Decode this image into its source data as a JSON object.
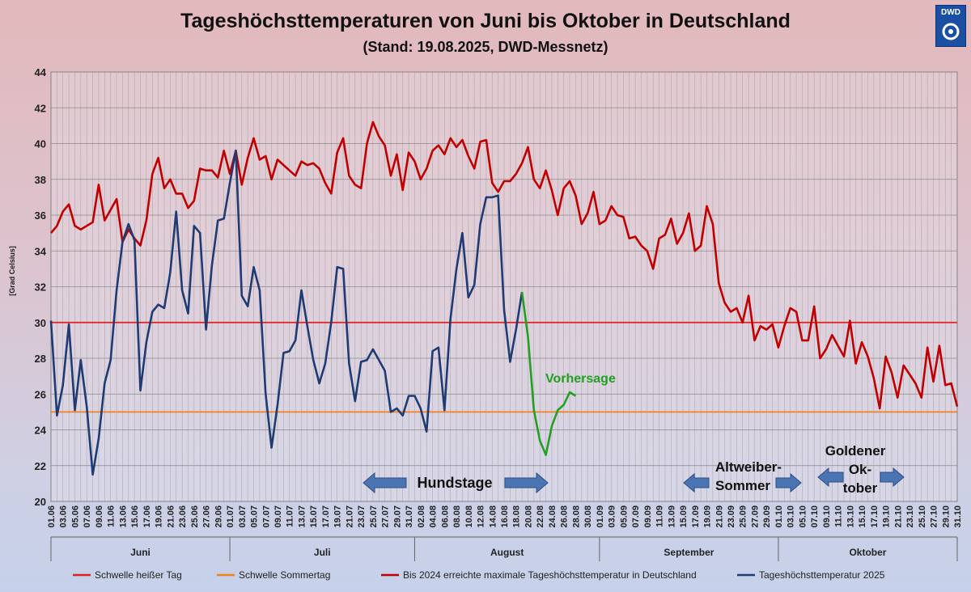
{
  "title": "Tageshöchsttemperaturen von Juni bis Oktober in Deutschland",
  "subtitle": "(Stand: 19.08.2025, DWD-Messnetz)",
  "logo_text": "DWD",
  "colors": {
    "hot_threshold": "#e02020",
    "summer_threshold": "#f08020",
    "record_max": "#c00000",
    "temp_2025": "#1f3b73",
    "forecast": "#22a022"
  },
  "annotations": {
    "forecast": "Vorhersage",
    "dog_days": "Hundstage",
    "indian_summer_1": "Altweiber-",
    "indian_summer_2": "Sommer",
    "golden_october_1": "Goldener",
    "golden_october_2": "Ok-",
    "golden_october_3": "tober"
  },
  "chart_data": {
    "type": "line",
    "ylabel": "[Grad Celsius]",
    "ylim": [
      20,
      44
    ],
    "yticks": [
      20,
      22,
      24,
      26,
      28,
      30,
      32,
      34,
      36,
      38,
      40,
      42,
      44
    ],
    "grid": true,
    "x_start": "01.06",
    "x_end": "31.10",
    "x_tick_labels": [
      "01.06",
      "03.06",
      "05.06",
      "07.06",
      "09.06",
      "11.06",
      "13.06",
      "15.06",
      "17.06",
      "19.06",
      "21.06",
      "23.06",
      "25.06",
      "27.06",
      "29.06",
      "01.07",
      "03.07",
      "05.07",
      "07.07",
      "09.07",
      "11.07",
      "13.07",
      "15.07",
      "17.07",
      "19.07",
      "21.07",
      "23.07",
      "25.07",
      "27.07",
      "29.07",
      "31.07",
      "02.08",
      "04.08",
      "06.08",
      "08.08",
      "10.08",
      "12.08",
      "14.08",
      "16.08",
      "18.08",
      "20.08",
      "22.08",
      "24.08",
      "26.08",
      "28.08",
      "30.08",
      "01.09",
      "03.09",
      "05.09",
      "07.09",
      "09.09",
      "11.09",
      "13.09",
      "15.09",
      "17.09",
      "19.09",
      "21.09",
      "23.09",
      "25.09",
      "27.09",
      "29.09",
      "01.10",
      "03.10",
      "05.10",
      "07.10",
      "09.10",
      "11.10",
      "13.10",
      "15.10",
      "17.10",
      "19.10",
      "21.10",
      "23.10",
      "25.10",
      "27.10",
      "29.10",
      "31.10"
    ],
    "months": [
      "Juni",
      "Juli",
      "August",
      "September",
      "Oktober"
    ],
    "month_days": [
      30,
      31,
      31,
      30,
      31
    ],
    "series": [
      {
        "name": "Schwelle heißer Tag",
        "kind": "threshold",
        "value": 30,
        "color": "#e02020"
      },
      {
        "name": "Schwelle Sommertag",
        "kind": "threshold",
        "value": 25,
        "color": "#f08020"
      },
      {
        "name": "Bis 2024 erreichte maximale Tageshöchsttemperatur in Deutschland",
        "color": "#c00000",
        "values": [
          35.0,
          35.4,
          36.2,
          36.6,
          35.4,
          35.2,
          35.4,
          35.6,
          37.7,
          35.7,
          36.3,
          36.9,
          34.5,
          35.2,
          34.7,
          34.3,
          35.7,
          38.3,
          39.2,
          37.5,
          38.0,
          37.2,
          37.2,
          36.4,
          36.8,
          38.6,
          38.5,
          38.5,
          38.1,
          39.6,
          38.3,
          39.6,
          37.7,
          39.2,
          40.3,
          39.1,
          39.3,
          38.0,
          39.1,
          38.8,
          38.5,
          38.2,
          39.0,
          38.8,
          38.9,
          38.6,
          37.8,
          37.2,
          39.5,
          40.3,
          38.2,
          37.7,
          37.5,
          40.0,
          41.2,
          40.4,
          39.9,
          38.2,
          39.4,
          37.4,
          39.5,
          39.0,
          38.0,
          38.6,
          39.6,
          39.9,
          39.4,
          40.3,
          39.8,
          40.2,
          39.3,
          38.6,
          40.1,
          40.2,
          37.8,
          37.3,
          37.9,
          37.9,
          38.3,
          38.9,
          39.8,
          38.0,
          37.5,
          38.5,
          37.4,
          36.0,
          37.5,
          37.9,
          37.1,
          35.5,
          36.1,
          37.3,
          35.5,
          35.7,
          36.5,
          36.0,
          35.9,
          34.7,
          34.8,
          34.3,
          34.0,
          33.0,
          34.7,
          34.9,
          35.8,
          34.4,
          35.0,
          36.1,
          34.0,
          34.3,
          36.5,
          35.5,
          32.2,
          31.1,
          30.6,
          30.8,
          30.0,
          31.5,
          29.0,
          29.8,
          29.6,
          29.9,
          28.6,
          29.8,
          30.8,
          30.6,
          29.0,
          29.0,
          30.9,
          28.0,
          28.5,
          29.3,
          28.7,
          28.1,
          30.1,
          27.7,
          28.9,
          28.1,
          26.9,
          25.2,
          28.1,
          27.2,
          25.8,
          27.6,
          27.1,
          26.6,
          25.8,
          28.6,
          26.7,
          28.7,
          26.5,
          26.6,
          25.3
        ]
      },
      {
        "name": "Tageshöchsttemperatur 2025",
        "color": "#1f3b73",
        "values": [
          30.1,
          24.8,
          26.5,
          29.9,
          25.1,
          27.9,
          25.3,
          21.5,
          23.5,
          26.6,
          27.9,
          31.8,
          34.5,
          35.5,
          34.6,
          26.2,
          28.9,
          30.6,
          31.0,
          30.8,
          32.8,
          36.2,
          31.8,
          30.5,
          35.4,
          35.0,
          29.6,
          33.2,
          35.7,
          35.8,
          37.8,
          39.6,
          31.5,
          30.9,
          33.1,
          31.8,
          26.0,
          23.0,
          25.4,
          28.3,
          28.4,
          29.0,
          31.8,
          29.8,
          27.9,
          26.6,
          27.7,
          30.0,
          33.1,
          33.0,
          27.7,
          25.6,
          27.8,
          27.9,
          28.5,
          27.9,
          27.3,
          25.0,
          25.2,
          24.8,
          25.9,
          25.9,
          25.2,
          23.9,
          28.4,
          28.6,
          25.1,
          30.2,
          33.0,
          35.0,
          31.4,
          32.1,
          35.5,
          37.0,
          37.0,
          37.1,
          30.7,
          27.8,
          29.6,
          31.7
        ]
      },
      {
        "name": "Vorhersage",
        "color": "#22a022",
        "start_index": 79,
        "values": [
          31.7,
          29.2,
          25.1,
          23.4,
          22.6,
          24.2,
          25.1,
          25.4,
          26.1,
          25.9
        ]
      }
    ],
    "legend": [
      "Schwelle heißer Tag",
      "Schwelle Sommertag",
      "Bis 2024 erreichte maximale Tageshöchsttemperatur in Deutschland",
      "Tageshöchsttemperatur 2025"
    ],
    "legend_position": "bottom",
    "period_arrows": [
      {
        "label": "Hundstage",
        "from": "23.07",
        "to": "23.08"
      },
      {
        "label": "Altweiber-Sommer",
        "from": "15.09",
        "to": "05.10"
      },
      {
        "label": "Goldener Oktober",
        "from": "05.10",
        "to": "20.10"
      }
    ]
  }
}
